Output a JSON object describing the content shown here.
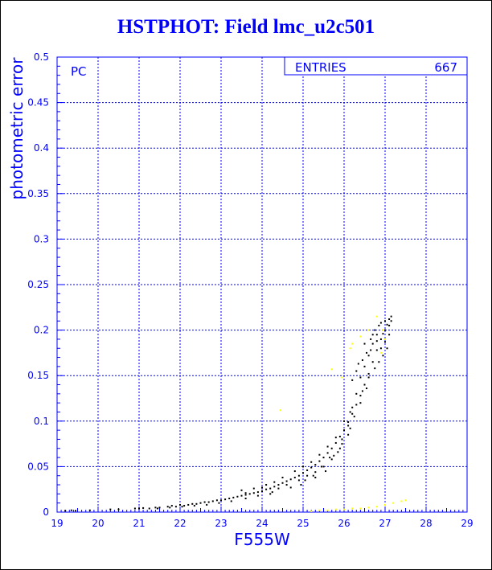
{
  "title": "HSTPHOT: Field lmc_u2c501",
  "chart_data": {
    "type": "scatter",
    "title": "HSTPHOT: Field lmc_u2c501",
    "xlabel": "F555W",
    "ylabel": "photometric error",
    "xlim": [
      19,
      29
    ],
    "ylim": [
      0,
      0.5
    ],
    "xticks": [
      "19",
      "20",
      "21",
      "22",
      "23",
      "24",
      "25",
      "26",
      "27",
      "28",
      "29"
    ],
    "yticks": [
      "0",
      "0.05",
      "0.1",
      "0.15",
      "0.2",
      "0.25",
      "0.3",
      "0.35",
      "0.4",
      "0.45",
      "0.5"
    ],
    "grid": true,
    "corner_label": "PC",
    "stats": {
      "label": "ENTRIES",
      "value": "667"
    },
    "colors": {
      "text": "#0000ff",
      "axis": "#0000ff",
      "grid": "#0000ff",
      "black_series": "#000000",
      "yellow_series": "#ffff00"
    },
    "series": [
      {
        "color": "#000000",
        "points": [
          [
            19.2,
            0.0015
          ],
          [
            19.35,
            0.002
          ],
          [
            19.45,
            0.0015
          ],
          [
            19.8,
            0.002
          ],
          [
            20.3,
            0.003
          ],
          [
            20.5,
            0.003
          ],
          [
            20.9,
            0.004
          ],
          [
            21.0,
            0.004
          ],
          [
            21.1,
            0.0045
          ],
          [
            21.25,
            0.004
          ],
          [
            21.4,
            0.005
          ],
          [
            21.5,
            0.005
          ],
          [
            21.7,
            0.006
          ],
          [
            21.8,
            0.007
          ],
          [
            21.9,
            0.006
          ],
          [
            22.0,
            0.008
          ],
          [
            22.1,
            0.007
          ],
          [
            22.2,
            0.008
          ],
          [
            22.3,
            0.009
          ],
          [
            22.4,
            0.009
          ],
          [
            22.5,
            0.01
          ],
          [
            22.6,
            0.011
          ],
          [
            22.7,
            0.011
          ],
          [
            22.8,
            0.012
          ],
          [
            22.9,
            0.013
          ],
          [
            23.0,
            0.013
          ],
          [
            23.1,
            0.014
          ],
          [
            23.2,
            0.015
          ],
          [
            23.3,
            0.016
          ],
          [
            23.4,
            0.017
          ],
          [
            23.5,
            0.018
          ],
          [
            23.6,
            0.019
          ],
          [
            23.7,
            0.02
          ],
          [
            23.8,
            0.021
          ],
          [
            23.9,
            0.022
          ],
          [
            24.0,
            0.023
          ],
          [
            24.1,
            0.025
          ],
          [
            24.2,
            0.026
          ],
          [
            24.3,
            0.028
          ],
          [
            24.4,
            0.03
          ],
          [
            24.5,
            0.032
          ],
          [
            24.6,
            0.034
          ],
          [
            24.7,
            0.036
          ],
          [
            24.8,
            0.038
          ],
          [
            24.9,
            0.04
          ],
          [
            25.0,
            0.043
          ],
          [
            25.1,
            0.046
          ],
          [
            25.2,
            0.049
          ],
          [
            25.3,
            0.052
          ],
          [
            25.4,
            0.056
          ],
          [
            25.5,
            0.06
          ],
          [
            25.6,
            0.065
          ],
          [
            25.7,
            0.07
          ],
          [
            25.8,
            0.076
          ],
          [
            25.9,
            0.083
          ],
          [
            26.0,
            0.09
          ],
          [
            26.1,
            0.099
          ],
          [
            26.2,
            0.108
          ],
          [
            26.3,
            0.118
          ],
          [
            26.4,
            0.128
          ],
          [
            26.5,
            0.14
          ],
          [
            26.6,
            0.152
          ],
          [
            26.7,
            0.165
          ],
          [
            26.8,
            0.178
          ],
          [
            26.9,
            0.19
          ],
          [
            27.0,
            0.2
          ],
          [
            27.1,
            0.212
          ],
          [
            27.15,
            0.215
          ],
          [
            26.95,
            0.196
          ],
          [
            27.05,
            0.206
          ],
          [
            23.5,
            0.024
          ],
          [
            23.8,
            0.026
          ],
          [
            24.1,
            0.03
          ],
          [
            24.3,
            0.033
          ],
          [
            24.5,
            0.038
          ],
          [
            24.6,
            0.03
          ],
          [
            24.8,
            0.045
          ],
          [
            24.9,
            0.035
          ],
          [
            25.0,
            0.05
          ],
          [
            25.1,
            0.04
          ],
          [
            25.2,
            0.055
          ],
          [
            25.3,
            0.044
          ],
          [
            25.4,
            0.063
          ],
          [
            25.5,
            0.05
          ],
          [
            25.6,
            0.072
          ],
          [
            25.7,
            0.058
          ],
          [
            25.8,
            0.082
          ],
          [
            25.9,
            0.07
          ],
          [
            26.0,
            0.1
          ],
          [
            26.1,
            0.085
          ],
          [
            26.2,
            0.115
          ],
          [
            26.3,
            0.13
          ],
          [
            26.4,
            0.148
          ],
          [
            26.5,
            0.16
          ],
          [
            26.6,
            0.172
          ],
          [
            26.7,
            0.185
          ],
          [
            26.8,
            0.195
          ],
          [
            26.85,
            0.205
          ],
          [
            26.9,
            0.208
          ],
          [
            27.0,
            0.21
          ],
          [
            26.55,
            0.175
          ],
          [
            26.65,
            0.19
          ],
          [
            26.75,
            0.2
          ],
          [
            26.45,
            0.167
          ],
          [
            26.3,
            0.155
          ],
          [
            26.2,
            0.145
          ],
          [
            26.35,
            0.163
          ],
          [
            26.5,
            0.185
          ],
          [
            26.7,
            0.195
          ],
          [
            26.8,
            0.188
          ],
          [
            26.9,
            0.18
          ],
          [
            27.0,
            0.187
          ],
          [
            27.1,
            0.195
          ],
          [
            27.05,
            0.18
          ],
          [
            26.95,
            0.172
          ],
          [
            26.85,
            0.165
          ],
          [
            26.75,
            0.158
          ],
          [
            26.6,
            0.148
          ],
          [
            26.55,
            0.136
          ],
          [
            26.4,
            0.12
          ],
          [
            26.25,
            0.105
          ],
          [
            26.1,
            0.095
          ],
          [
            25.95,
            0.075
          ],
          [
            25.85,
            0.066
          ],
          [
            25.55,
            0.045
          ],
          [
            25.3,
            0.038
          ],
          [
            24.95,
            0.03
          ],
          [
            24.7,
            0.027
          ],
          [
            24.25,
            0.022
          ],
          [
            23.9,
            0.018
          ],
          [
            23.6,
            0.015
          ],
          [
            23.25,
            0.012
          ],
          [
            22.95,
            0.01
          ],
          [
            22.65,
            0.008
          ],
          [
            22.35,
            0.007
          ],
          [
            22.05,
            0.006
          ],
          [
            21.75,
            0.005
          ],
          [
            21.45,
            0.004
          ],
          [
            23.6,
            0.021
          ],
          [
            24.0,
            0.027
          ],
          [
            24.2,
            0.02
          ],
          [
            24.4,
            0.026
          ],
          [
            25.05,
            0.035
          ],
          [
            25.25,
            0.04
          ],
          [
            25.45,
            0.05
          ],
          [
            25.65,
            0.06
          ],
          [
            25.75,
            0.062
          ],
          [
            25.95,
            0.08
          ],
          [
            26.15,
            0.092
          ],
          [
            26.15,
            0.11
          ],
          [
            26.45,
            0.133
          ],
          [
            26.65,
            0.178
          ],
          [
            27.1,
            0.205
          ],
          [
            27.15,
            0.21
          ]
        ]
      },
      {
        "color": "#ffff00",
        "points": [
          [
            24.45,
            0.112
          ],
          [
            25.7,
            0.157
          ],
          [
            25.95,
            0.148
          ],
          [
            26.15,
            0.18
          ],
          [
            26.2,
            0.185
          ],
          [
            26.4,
            0.193
          ],
          [
            26.6,
            0.2
          ],
          [
            26.8,
            0.215
          ],
          [
            26.95,
            0.2
          ],
          [
            27.0,
            0.19
          ],
          [
            26.9,
            0.175
          ],
          [
            25.2,
            0.001
          ],
          [
            25.4,
            0.002
          ],
          [
            25.6,
            0.002
          ],
          [
            25.8,
            0.003
          ],
          [
            26.0,
            0.003
          ],
          [
            26.2,
            0.004
          ],
          [
            26.4,
            0.004
          ],
          [
            26.6,
            0.005
          ],
          [
            26.8,
            0.006
          ],
          [
            27.0,
            0.008
          ],
          [
            27.2,
            0.01
          ],
          [
            27.4,
            0.012
          ],
          [
            27.5,
            0.013
          ]
        ]
      }
    ]
  }
}
